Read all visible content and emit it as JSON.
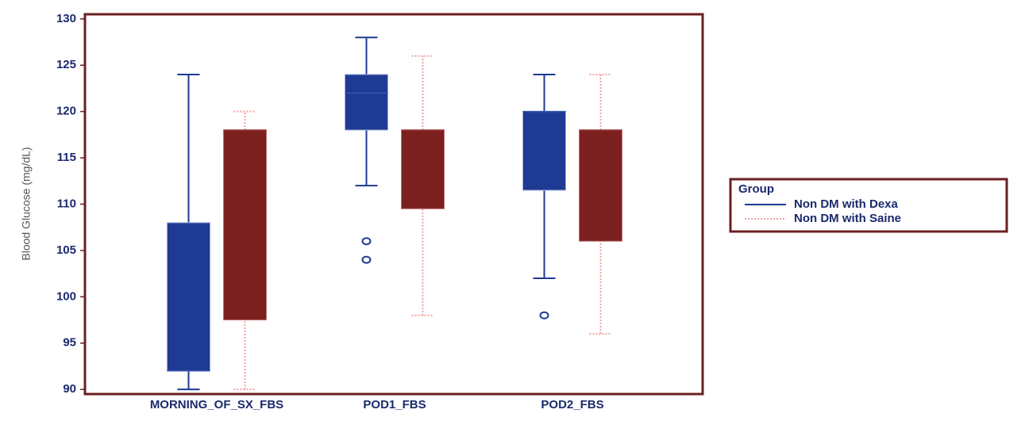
{
  "chart_data": {
    "type": "box",
    "y_label": "Blood Glucose (mg/dL)",
    "categories": [
      "MORNING_OF_SX_FBS",
      "POD1_FBS",
      "POD2_FBS"
    ],
    "ylim": [
      89.5,
      130.5
    ],
    "yticks": [
      90,
      95,
      100,
      105,
      110,
      115,
      120,
      125,
      130
    ],
    "legend_title": "Group",
    "series": [
      {
        "name": "Non DM with Dexa",
        "color": "#1f3a93",
        "whisker_color": "#1f3a93",
        "boxes": [
          {
            "min": 90,
            "q1": 92,
            "median": 92,
            "q3": 108,
            "max": 124
          },
          {
            "min": 112,
            "q1": 118,
            "median": 122,
            "q3": 124,
            "max": 128,
            "outliers": [
              106,
              104
            ]
          },
          {
            "min": 102,
            "q1": 111.5,
            "median": 120,
            "q3": 120,
            "max": 124,
            "outliers": [
              98
            ]
          }
        ]
      },
      {
        "name": "Non DM with Saine",
        "color": "#7b1f1f",
        "whisker_color": "#f4a0a0",
        "boxes": [
          {
            "min": 90,
            "q1": 97.5,
            "median": 118,
            "q3": 118,
            "max": 120
          },
          {
            "min": 98,
            "q1": 109.5,
            "median": 118,
            "q3": 118,
            "max": 126
          },
          {
            "min": 96,
            "q1": 106,
            "median": 118,
            "q3": 118,
            "max": 124
          }
        ]
      }
    ]
  }
}
